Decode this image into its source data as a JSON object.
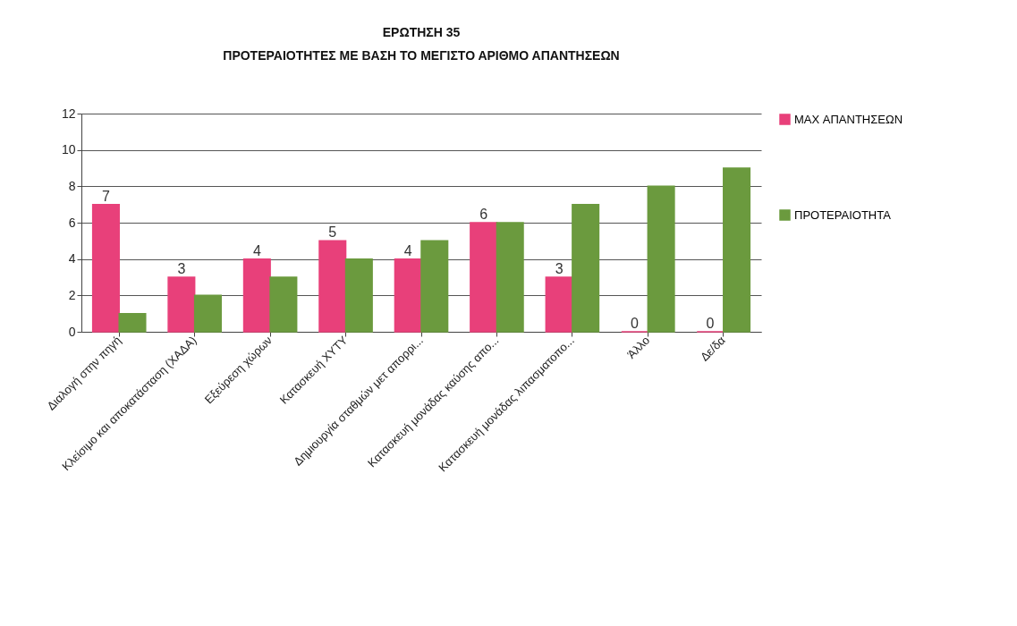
{
  "chart_data": {
    "type": "bar",
    "title": "ΕΡΩΤΗΣΗ 35",
    "subtitle": "ΠΡΟΤΕΡΑΙΟΤΗΤΕΣ ΜΕ ΒΑΣΗ ΤΟ ΜΕΓΙΣΤΟ ΑΡΙΘΜΟ ΑΠΑΝΤΗΣΕΩΝ",
    "categories": [
      "Διαλογή στην πηγή",
      "Κλείσιμο και αποκατάσταση (ΧΑΔΑ)",
      "Εξεύρεση χώρων",
      "Κατασκευή ΧΥΤΥ",
      "Δημιουργία σταθμών μετ απορρι...",
      "Κατασκευή μονάδας καύσης απο...",
      "Κατασκευή μονάδας λιπασματοπο...",
      "Άλλο",
      "Δε/δα"
    ],
    "series": [
      {
        "name": "MAX ΑΠΑΝΤΗΣΕΩΝ",
        "color": "#e8407a",
        "values": [
          7,
          3,
          4,
          5,
          4,
          6,
          3,
          0,
          0
        ],
        "value_labels": [
          "7",
          "3",
          "4",
          "5",
          "4",
          "6",
          "3",
          "0",
          "0"
        ]
      },
      {
        "name": "ΠΡΟΤΕΡΑΙΟΤΗΤΑ",
        "color": "#6b9a3e",
        "values": [
          1,
          2,
          3,
          4,
          5,
          6,
          7,
          8,
          9
        ]
      }
    ],
    "ylim": [
      0,
      12
    ],
    "yticks": [
      0,
      2,
      4,
      6,
      8,
      10,
      12
    ],
    "grid": "y",
    "legend": "right"
  }
}
